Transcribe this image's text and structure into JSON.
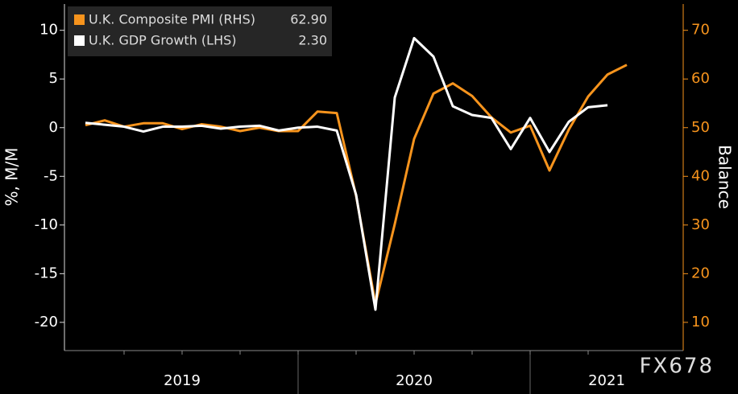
{
  "chart_data": {
    "type": "line",
    "x": [
      "2019",
      "2019",
      "2019",
      "2019",
      "2019",
      "2019",
      "2019",
      "2019",
      "2019",
      "2019",
      "2019",
      "2019",
      "2020",
      "2020",
      "2020",
      "2020",
      "2020",
      "2020",
      "2020",
      "2020",
      "2020",
      "2020",
      "2020",
      "2020",
      "2021",
      "2021",
      "2021",
      "2021",
      "2021"
    ],
    "series": [
      {
        "name": "U.K. Composite PMI (RHS)",
        "color": "#f7941d",
        "axis": "y2",
        "legend_value": "62.90",
        "values": [
          50.5,
          51.5,
          50.2,
          50.9,
          50.9,
          49.7,
          50.7,
          50.2,
          49.3,
          50.0,
          49.3,
          49.3,
          53.3,
          53.0,
          36.0,
          13.8,
          30.2,
          47.7,
          57.0,
          59.1,
          56.5,
          52.1,
          49.0,
          50.4,
          41.2,
          49.6,
          56.4,
          60.9,
          62.9
        ]
      },
      {
        "name": "U.K. GDP Growth (LHS)",
        "color": "#ffffff",
        "legend_value": "2.30",
        "values": [
          0.5,
          0.3,
          0.1,
          -0.4,
          0.1,
          0.1,
          0.2,
          -0.1,
          0.1,
          0.2,
          -0.3,
          0.0,
          0.1,
          -0.3,
          -6.9,
          -18.7,
          3.1,
          9.2,
          7.3,
          2.2,
          1.3,
          1.0,
          -2.2,
          1.0,
          -2.5,
          0.6,
          2.1,
          2.3,
          null
        ]
      }
    ],
    "ylabel": "%, M/M",
    "y2label": "Balance",
    "ylim": [
      -22.9,
      12.7
    ],
    "yticks": [
      -20,
      -15,
      -10,
      -5,
      0,
      5,
      10
    ],
    "y2lim": [
      4.2,
      75.4
    ],
    "y2ticks": [
      10,
      20,
      30,
      40,
      50,
      60,
      70
    ],
    "y2color": "#f7941d",
    "watermark": "FX678"
  }
}
